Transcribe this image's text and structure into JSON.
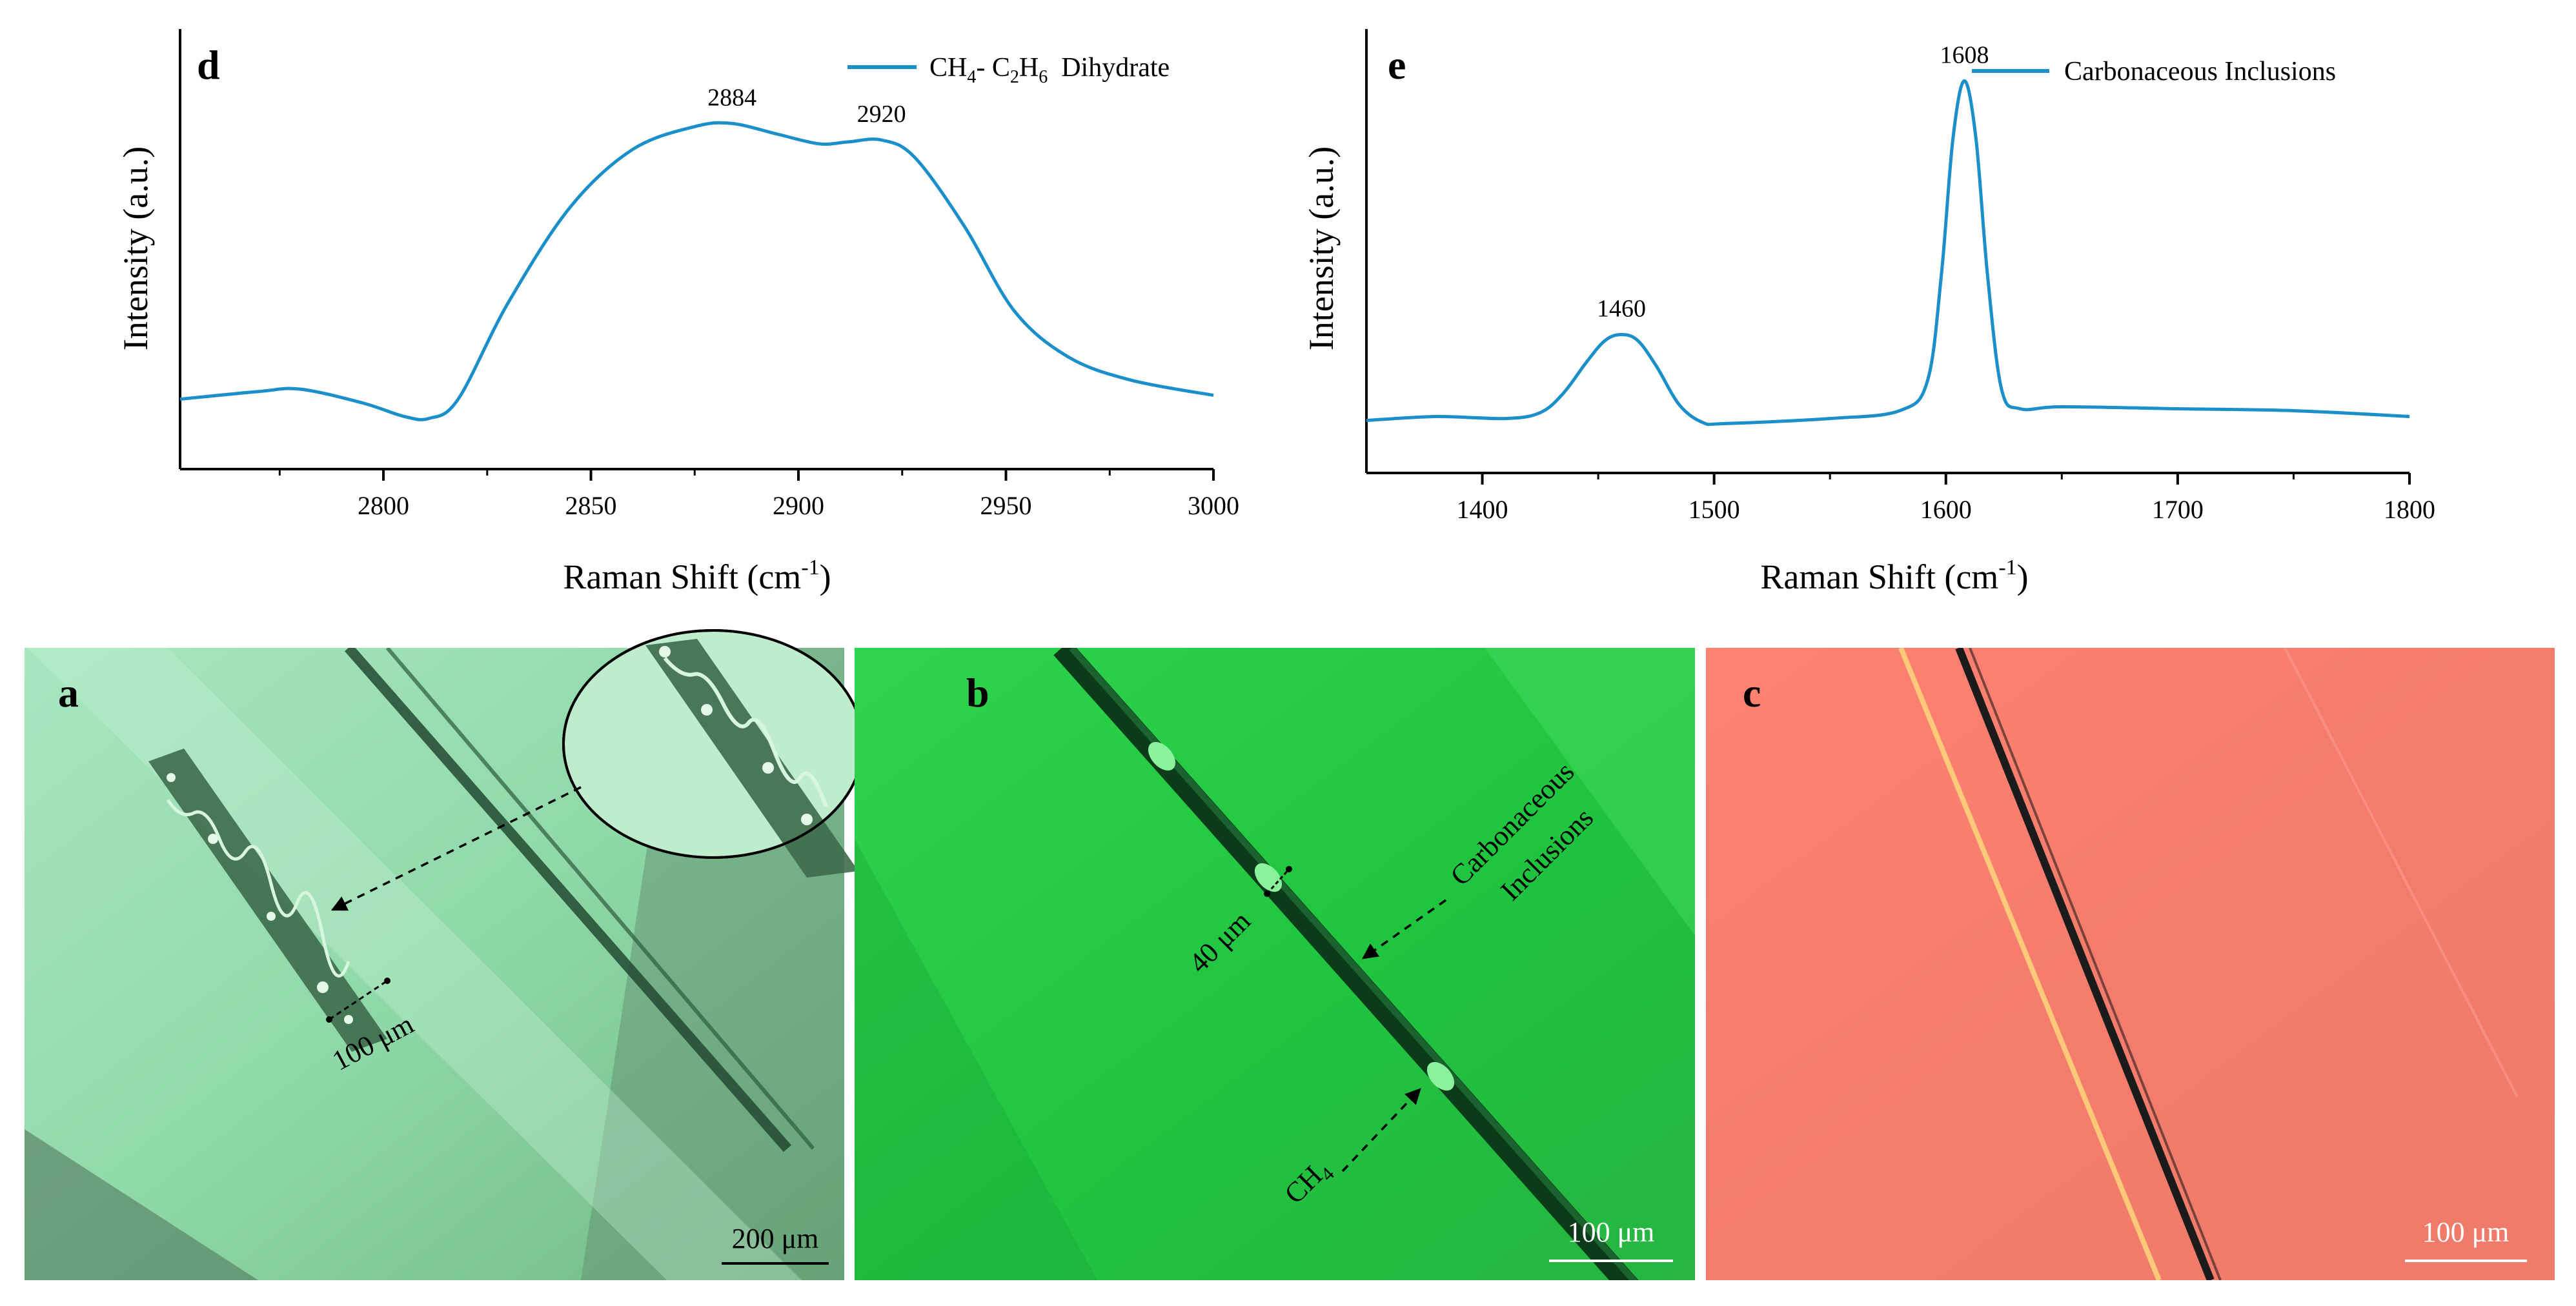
{
  "chart_data": [
    {
      "type": "line",
      "panel": "d",
      "legend": [
        "CH",
        "4",
        "- C",
        "2",
        "H",
        "6",
        "  Dihydrate"
      ],
      "xlabel": "Raman Shift (cm",
      "xlabel_sup": "-1",
      "xlabel_close": ")",
      "ylabel": "Intensity (a.u.)",
      "xlim": [
        2751,
        3000
      ],
      "ylim": [
        0,
        100
      ],
      "xticks": [
        2800,
        2850,
        2900,
        2950,
        3000
      ],
      "color": "#1a8fc9",
      "x": [
        2751,
        2770,
        2780,
        2795,
        2805,
        2811,
        2818,
        2830,
        2845,
        2860,
        2875,
        2884,
        2895,
        2905,
        2912,
        2920,
        2928,
        2940,
        2952,
        2965,
        2980,
        3000
      ],
      "y": [
        12,
        14,
        14.6,
        11,
        7.5,
        7,
        12,
        37,
        62,
        77,
        83,
        83.8,
        81,
        78.5,
        79,
        79.5,
        75,
        57,
        35,
        23,
        17,
        13
      ],
      "peaks": [
        {
          "x": 2884,
          "y": 83.8,
          "label": "2884"
        },
        {
          "x": 2920,
          "y": 79.5,
          "label": "2920"
        }
      ]
    },
    {
      "type": "line",
      "panel": "e",
      "legend": "Carbonaceous Inclusions",
      "xlabel": "Raman Shift (cm",
      "xlabel_sup": "-1",
      "xlabel_close": ")",
      "ylabel": "Intensity (a.u.)",
      "xlim": [
        1350,
        1800
      ],
      "ylim": [
        0,
        100
      ],
      "xticks": [
        1400,
        1500,
        1600,
        1700,
        1800
      ],
      "color": "#1a8fc9",
      "x": [
        1350,
        1380,
        1410,
        1425,
        1435,
        1445,
        1453,
        1460,
        1467,
        1475,
        1485,
        1495,
        1505,
        1550,
        1580,
        1592,
        1598,
        1603,
        1608,
        1613,
        1618,
        1624,
        1632,
        1650,
        1700,
        1750,
        1800
      ],
      "y": [
        8,
        9,
        8.5,
        10,
        15,
        23,
        28.5,
        30,
        28.5,
        22,
        12,
        7.5,
        7.2,
        8.5,
        10.5,
        18,
        45,
        80,
        95,
        80,
        45,
        16,
        11,
        11.5,
        11,
        10.5,
        9
      ],
      "peaks": [
        {
          "x": 1460,
          "y": 30,
          "label": "1460"
        },
        {
          "x": 1608,
          "y": 95,
          "label": "1608"
        }
      ]
    }
  ],
  "photos": {
    "a": {
      "letter": "a",
      "scale_bar": "200 μm",
      "measure": "100 μm"
    },
    "b": {
      "letter": "b",
      "scale_bar": "100 μm",
      "measure": "40 μm",
      "label_inclusions_1": "Carbonaceous",
      "label_inclusions_2": "Inclusions",
      "label_ch4_main": "CH",
      "label_ch4_sub": "4"
    },
    "c": {
      "letter": "c",
      "scale_bar": "100 μm"
    }
  }
}
